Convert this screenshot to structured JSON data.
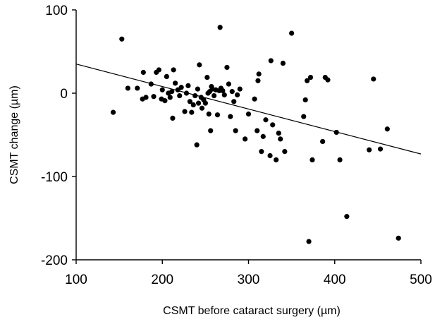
{
  "chart_data": {
    "type": "scatter",
    "xlabel": "CSMT before cataract surgery (µm)",
    "ylabel": "CSMT change (µm)",
    "xlim": [
      100,
      500
    ],
    "ylim": [
      -200,
      100
    ],
    "xticks": [
      100,
      200,
      300,
      400,
      500
    ],
    "yticks": [
      100,
      0,
      -100,
      -200
    ],
    "xtick_labels": [
      "100",
      "200",
      "300",
      "400",
      "500"
    ],
    "ytick_labels": [
      "100",
      "0",
      "-100",
      "-200"
    ],
    "grid": false,
    "legend": "none",
    "marker_color": "#000000",
    "line_color": "#000000",
    "trendline": {
      "x": [
        100,
        500
      ],
      "y": [
        35,
        -73
      ]
    },
    "series": [
      {
        "points": [
          [
            143,
            -23
          ],
          [
            153,
            65
          ],
          [
            160,
            6
          ],
          [
            171,
            6
          ],
          [
            177,
            -7
          ],
          [
            178,
            25
          ],
          [
            181,
            -5
          ],
          [
            187,
            11
          ],
          [
            190,
            -4
          ],
          [
            193,
            25
          ],
          [
            196,
            28
          ],
          [
            199,
            -7
          ],
          [
            200,
            4
          ],
          [
            203,
            -9
          ],
          [
            205,
            20
          ],
          [
            207,
            0
          ],
          [
            209,
            -5
          ],
          [
            211,
            2
          ],
          [
            212,
            -30
          ],
          [
            213,
            28
          ],
          [
            215,
            12
          ],
          [
            218,
            4
          ],
          [
            220,
            -3
          ],
          [
            222,
            7
          ],
          [
            226,
            -22
          ],
          [
            228,
            0
          ],
          [
            230,
            9
          ],
          [
            232,
            -10
          ],
          [
            234,
            -23
          ],
          [
            236,
            -14
          ],
          [
            238,
            -3
          ],
          [
            240,
            -62
          ],
          [
            241,
            5
          ],
          [
            242,
            -12
          ],
          [
            243,
            34
          ],
          [
            245,
            -5
          ],
          [
            246,
            -18
          ],
          [
            248,
            -8
          ],
          [
            250,
            -12
          ],
          [
            252,
            19
          ],
          [
            253,
            0
          ],
          [
            254,
            -25
          ],
          [
            255,
            2
          ],
          [
            256,
            -45
          ],
          [
            257,
            8
          ],
          [
            258,
            5
          ],
          [
            260,
            -3
          ],
          [
            262,
            4
          ],
          [
            264,
            -26
          ],
          [
            266,
            3
          ],
          [
            267,
            79
          ],
          [
            268,
            6
          ],
          [
            270,
            3
          ],
          [
            272,
            -2
          ],
          [
            275,
            31
          ],
          [
            277,
            11
          ],
          [
            279,
            -28
          ],
          [
            281,
            2
          ],
          [
            283,
            -10
          ],
          [
            285,
            -45
          ],
          [
            287,
            -2
          ],
          [
            290,
            5
          ],
          [
            296,
            -55
          ],
          [
            300,
            -25
          ],
          [
            307,
            -7
          ],
          [
            310,
            -45
          ],
          [
            311,
            15
          ],
          [
            312,
            23
          ],
          [
            315,
            -70
          ],
          [
            317,
            -52
          ],
          [
            320,
            -32
          ],
          [
            325,
            -75
          ],
          [
            326,
            39
          ],
          [
            328,
            -38
          ],
          [
            332,
            -80
          ],
          [
            335,
            -48
          ],
          [
            337,
            -55
          ],
          [
            340,
            36
          ],
          [
            342,
            -70
          ],
          [
            350,
            72
          ],
          [
            364,
            -28
          ],
          [
            366,
            -8
          ],
          [
            368,
            15
          ],
          [
            370,
            -178
          ],
          [
            372,
            19
          ],
          [
            374,
            -80
          ],
          [
            386,
            -58
          ],
          [
            389,
            19
          ],
          [
            392,
            16
          ],
          [
            402,
            -47
          ],
          [
            406,
            -80
          ],
          [
            414,
            -148
          ],
          [
            440,
            -68
          ],
          [
            445,
            17
          ],
          [
            453,
            -67
          ],
          [
            461,
            -43
          ],
          [
            474,
            -174
          ]
        ]
      }
    ]
  }
}
